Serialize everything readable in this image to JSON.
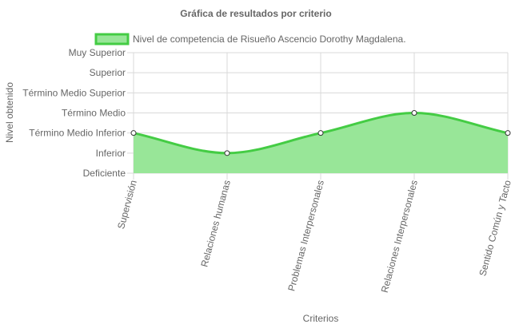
{
  "chart_data": {
    "type": "area",
    "title": "Gráfica de resultados por criterio",
    "xlabel": "Criterios",
    "ylabel": "Nivel obtenido",
    "categories": [
      "Supervisión",
      "Relaciones humanas",
      "Problemas Interpersonales",
      "Relaciones Interpersonales",
      "Sentido Común y Tacto"
    ],
    "y_levels": [
      "Deficiente",
      "Inferior",
      "Término Medio Inferior",
      "Término Medio",
      "Término Medio Superior",
      "Superior",
      "Muy Superior"
    ],
    "ylim": [
      0,
      6
    ],
    "series": [
      {
        "name": "Nivel de competencia de Risueño Ascencio Dorothy Magdalena.",
        "values": [
          2,
          1,
          2,
          3,
          2
        ],
        "labels": [
          "Término Medio Inferior",
          "Inferior",
          "Término Medio Inferior",
          "Término Medio",
          "Término Medio Inferior"
        ]
      }
    ],
    "grid": true,
    "legend_position": "top",
    "colors": {
      "line": "#44cc44",
      "fill": "#98e698",
      "point_fill": "#ffffff",
      "point_stroke": "#333333",
      "grid": "#d9d9d9",
      "axis_text": "#666666"
    }
  }
}
